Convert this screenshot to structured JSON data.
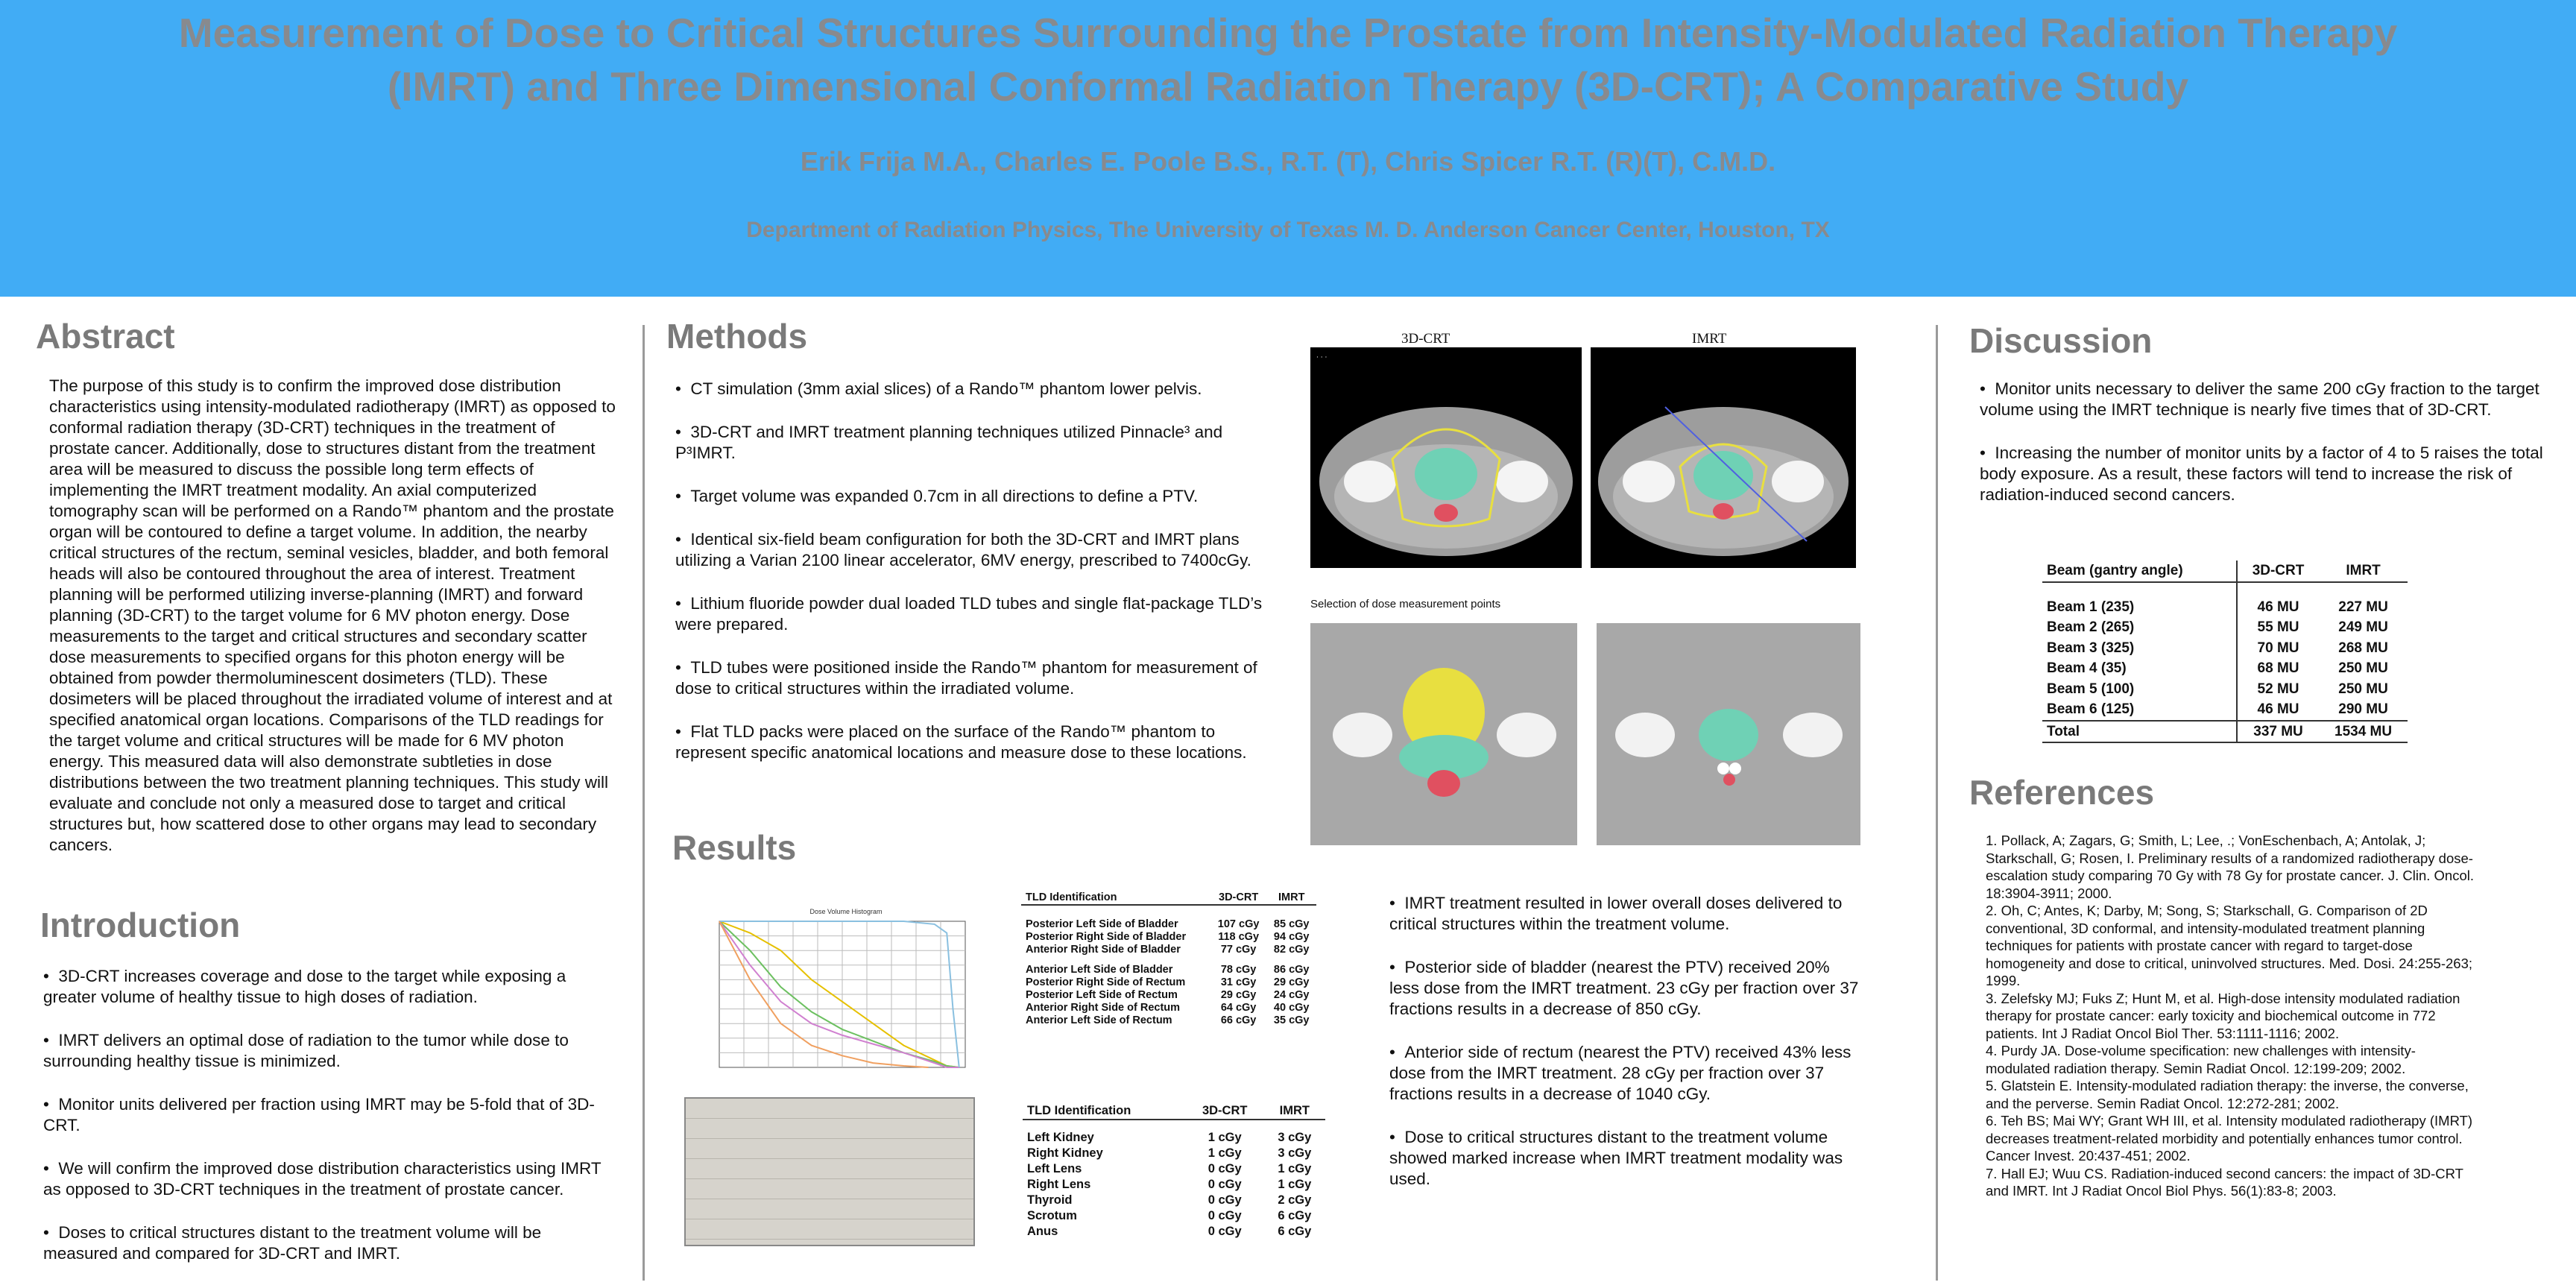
{
  "header": {
    "title_line1": "Measurement of Dose to Critical Structures Surrounding the Prostate from Intensity-Modulated Radiation Therapy",
    "title_line2": "(IMRT) and Three Dimensional Conformal Radiation Therapy (3D-CRT); A Comparative Study",
    "authors": "Erik Frija M.A., Charles E. Poole B.S., R.T. (T), Chris Spicer R.T. (R)(T), C.M.D.",
    "affiliation": "Department of Radiation Physics, The University of Texas M. D. Anderson Cancer Center, Houston, TX"
  },
  "abstract": {
    "heading": "Abstract",
    "text": "The purpose of this study is to confirm the improved dose distribution characteristics using intensity-modulated radiotherapy (IMRT) as opposed to conformal radiation therapy (3D-CRT) techniques in the treatment of prostate cancer.  Additionally, dose to structures distant from the treatment area will be measured to discuss the possible long term effects of implementing the IMRT treatment modality.  An axial computerized tomography scan will be performed on a Rando™ phantom and the prostate organ will be contoured to define a target volume.  In addition, the nearby critical structures of the rectum, seminal vesicles, bladder, and both femoral heads will also be contoured throughout the area of interest.  Treatment planning will be performed utilizing inverse-planning (IMRT) and forward planning (3D-CRT) to the target volume for 6 MV photon energy.  Dose measurements to the target and critical structures and secondary scatter dose measurements to specified organs for this photon energy will be obtained from powder thermoluminescent dosimeters (TLD).  These dosimeters will be placed throughout the irradiated volume of interest and at specified anatomical organ locations.  Comparisons of the TLD readings for the target volume and critical structures will be made for 6 MV photon energy.  This measured data will also demonstrate subtleties in dose distributions between the two treatment planning techniques.  This study will evaluate and conclude not only a measured dose to target and critical structures but, how scattered dose to other organs may lead to secondary cancers."
  },
  "introduction": {
    "heading": "Introduction",
    "bullets": [
      "3D-CRT increases coverage and dose to the target while exposing a greater volume of healthy tissue to high doses of radiation.",
      "IMRT delivers an optimal dose of radiation to the tumor while dose to surrounding healthy tissue is minimized.",
      "Monitor units delivered per fraction using IMRT may be 5-fold that of 3D-CRT.",
      "We will confirm the improved dose distribution characteristics using IMRT as opposed to 3D-CRT techniques in the treatment of prostate cancer.",
      "Doses to critical structures distant to the treatment volume will be measured and compared for 3D-CRT and IMRT."
    ]
  },
  "methods": {
    "heading": "Methods",
    "bullets": [
      "CT simulation (3mm axial slices) of a Rando™ phantom lower pelvis.",
      "3D-CRT and  IMRT treatment planning techniques utilized Pinnacle³ and P³IMRT.",
      "Target volume was expanded 0.7cm in all directions to define a PTV.",
      "Identical six-field beam configuration for both the 3D-CRT and IMRT plans utilizing a Varian 2100 linear accelerator, 6MV energy, prescribed to 7400cGy.",
      "Lithium fluoride powder dual loaded TLD tubes and single flat-package TLD’s were prepared.",
      "TLD tubes were positioned inside the Rando™ phantom for measurement of dose to critical structures within the irradiated volume.",
      "Flat TLD packs were placed on the surface of  the Rando™ phantom to represent specific anatomical locations and measure dose to these locations."
    ],
    "figure_labels": {
      "left": "3D-CRT",
      "right": "IMRT"
    },
    "selection_caption": "Selection of dose measurement points"
  },
  "results": {
    "heading": "Results",
    "chart_title": "Dose Volume Histogram",
    "tld_table_1": {
      "headers": [
        "TLD Identification",
        "3D-CRT",
        "IMRT"
      ],
      "rows": [
        [
          "Posterior Left Side of Bladder",
          "107 cGy",
          "85 cGy"
        ],
        [
          "Posterior Right Side of Bladder",
          "118 cGy",
          "94 cGy"
        ],
        [
          "Anterior Right Side of Bladder",
          "77 cGy",
          "82 cGy"
        ],
        [
          "Anterior Left Side of Bladder",
          "78 cGy",
          "86 cGy"
        ],
        [
          "Posterior Right Side of Rectum",
          "31 cGy",
          "29 cGy"
        ],
        [
          "Posterior Left Side of Rectum",
          "29 cGy",
          "24 cGy"
        ],
        [
          "Anterior Right Side of Rectum",
          "64 cGy",
          "40 cGy"
        ],
        [
          "Anterior Left Side of Rectum",
          "66 cGy",
          "35 cGy"
        ]
      ]
    },
    "tld_table_2": {
      "headers": [
        "TLD Identification",
        "3D-CRT",
        "IMRT"
      ],
      "rows": [
        [
          "Left Kidney",
          "1 cGy",
          "3 cGy"
        ],
        [
          "Right Kidney",
          "1 cGy",
          "3 cGy"
        ],
        [
          "Left Lens",
          "0 cGy",
          "1 cGy"
        ],
        [
          "Right Lens",
          "0 cGy",
          "1 cGy"
        ],
        [
          "Thyroid",
          "0 cGy",
          "2 cGy"
        ],
        [
          "Scrotum",
          "0 cGy",
          "6 cGy"
        ],
        [
          "Anus",
          "0 cGy",
          "6 cGy"
        ]
      ]
    },
    "bullets": [
      "IMRT treatment resulted in lower overall doses delivered to critical structures within the treatment volume.",
      "Posterior side of bladder (nearest the PTV) received 20% less dose from the IMRT treatment. 23 cGy per fraction over 37 fractions results in a decrease of 850 cGy.",
      "Anterior side of rectum (nearest the PTV) received 43% less dose from the IMRT treatment.  28 cGy per fraction over 37 fractions results in a decrease of 1040 cGy.",
      "Dose to critical structures distant to the treatment volume showed marked increase when IMRT treatment modality was used."
    ]
  },
  "discussion": {
    "heading": "Discussion",
    "bullets": [
      "Monitor units necessary to deliver the same 200 cGy fraction to the target volume using the IMRT technique is nearly five times that of 3D-CRT.",
      "Increasing the number of monitor units by a factor of 4 to 5 raises the total body exposure. As a result, these factors will tend to increase the risk of radiation-induced second cancers."
    ],
    "mu_table": {
      "headers": [
        "Beam (gantry angle)",
        "3D-CRT",
        "IMRT"
      ],
      "rows": [
        [
          "Beam 1 (235)",
          "46 MU",
          "227 MU"
        ],
        [
          "Beam 2 (265)",
          "55 MU",
          "249 MU"
        ],
        [
          "Beam 3 (325)",
          "70 MU",
          "268 MU"
        ],
        [
          "Beam 4 (35)",
          "68 MU",
          "250 MU"
        ],
        [
          "Beam 5 (100)",
          "52 MU",
          "250 MU"
        ],
        [
          "Beam 6 (125)",
          "46 MU",
          "290 MU"
        ]
      ],
      "total": [
        "Total",
        "337 MU",
        "1534 MU"
      ]
    }
  },
  "references": {
    "heading": "References",
    "items": [
      "1.  Pollack, A; Zagars, G; Smith, L; Lee, .; VonEschenbach, A; Antolak, J; Starkschall, G; Rosen, I. Preliminary results of a randomized radiotherapy dose-escalation study comparing 70 Gy with 78 Gy for prostate cancer. J. Clin. Oncol. 18:3904-3911;        2000.",
      "2.  Oh, C; Antes, K; Darby, M; Song, S; Starkschall, G. Comparison of 2D conventional, 3D conformal, and intensity-modulated treatment planning techniques for patients with prostate cancer with regard to target-dose homogeneity and dose to critical, uninvolved structures. Med. Dosi. 24:255-263; 1999.",
      "3.  Zelefsky MJ; Fuks Z; Hunt M, et al. High-dose intensity modulated radiation therapy for prostate cancer: early toxicity and biochemical outcome in 772 patients. Int J Radiat Oncol Biol Ther. 53:1111-1116; 2002.",
      "4.  Purdy JA. Dose-volume specification: new challenges with intensity-modulated radiation therapy. Semin Radiat Oncol. 12:199-209; 2002.",
      "5.  Glatstein E. Intensity-modulated radiation therapy: the inverse, the converse, and the perverse. Semin Radiat Oncol. 12:272-281; 2002.",
      "6.  Teh BS; Mai WY; Grant WH III, et al. Intensity modulated radiotherapy (IMRT) decreases treatment-related morbidity and potentially enhances tumor control. Cancer Invest. 20:437-451; 2002.",
      "7.  Hall EJ; Wuu CS. Radiation-induced second cancers: the impact of 3D-CRT and IMRT. Int J Radiat Oncol Biol Phys. 56(1):83-8; 2003."
    ]
  },
  "chart_data": {
    "type": "line",
    "title": "Dose Volume Histogram",
    "series": [
      {
        "color": "#e6c000",
        "x": [
          0,
          1000,
          2000,
          3000,
          4000,
          5000,
          6000,
          7000,
          7400,
          7800
        ],
        "y": [
          100,
          92,
          80,
          60,
          45,
          30,
          15,
          5,
          1,
          0
        ]
      },
      {
        "color": "#6cc060",
        "x": [
          0,
          1000,
          2000,
          3000,
          4000,
          5000,
          6000,
          7000,
          7400,
          7800
        ],
        "y": [
          100,
          80,
          55,
          38,
          26,
          18,
          10,
          4,
          1,
          0
        ]
      },
      {
        "color": "#d080d0",
        "x": [
          0,
          1000,
          2000,
          3000,
          4000,
          5000,
          6000,
          7000,
          7400,
          7800
        ],
        "y": [
          100,
          70,
          45,
          30,
          22,
          16,
          10,
          3,
          0,
          0
        ]
      },
      {
        "color": "#8ac0e0",
        "x": [
          0,
          2000,
          4000,
          6000,
          7000,
          7400,
          7600,
          7800
        ],
        "y": [
          100,
          100,
          100,
          100,
          98,
          92,
          40,
          0
        ]
      },
      {
        "color": "#f0a060",
        "x": [
          0,
          1000,
          2000,
          3000,
          4000,
          5000,
          6000,
          6800
        ],
        "y": [
          100,
          60,
          30,
          15,
          8,
          3,
          1,
          0
        ]
      }
    ],
    "xlim": [
      0,
      8000
    ],
    "ylim": [
      0,
      100
    ],
    "grid": true
  },
  "colors": {
    "header_bg": "#41acf5",
    "header_text": "#888a8e",
    "section_heading": "#7a7a7a",
    "bladder": "#e8df40",
    "prostate": "#6fd1b5",
    "rectum": "#e05060"
  }
}
